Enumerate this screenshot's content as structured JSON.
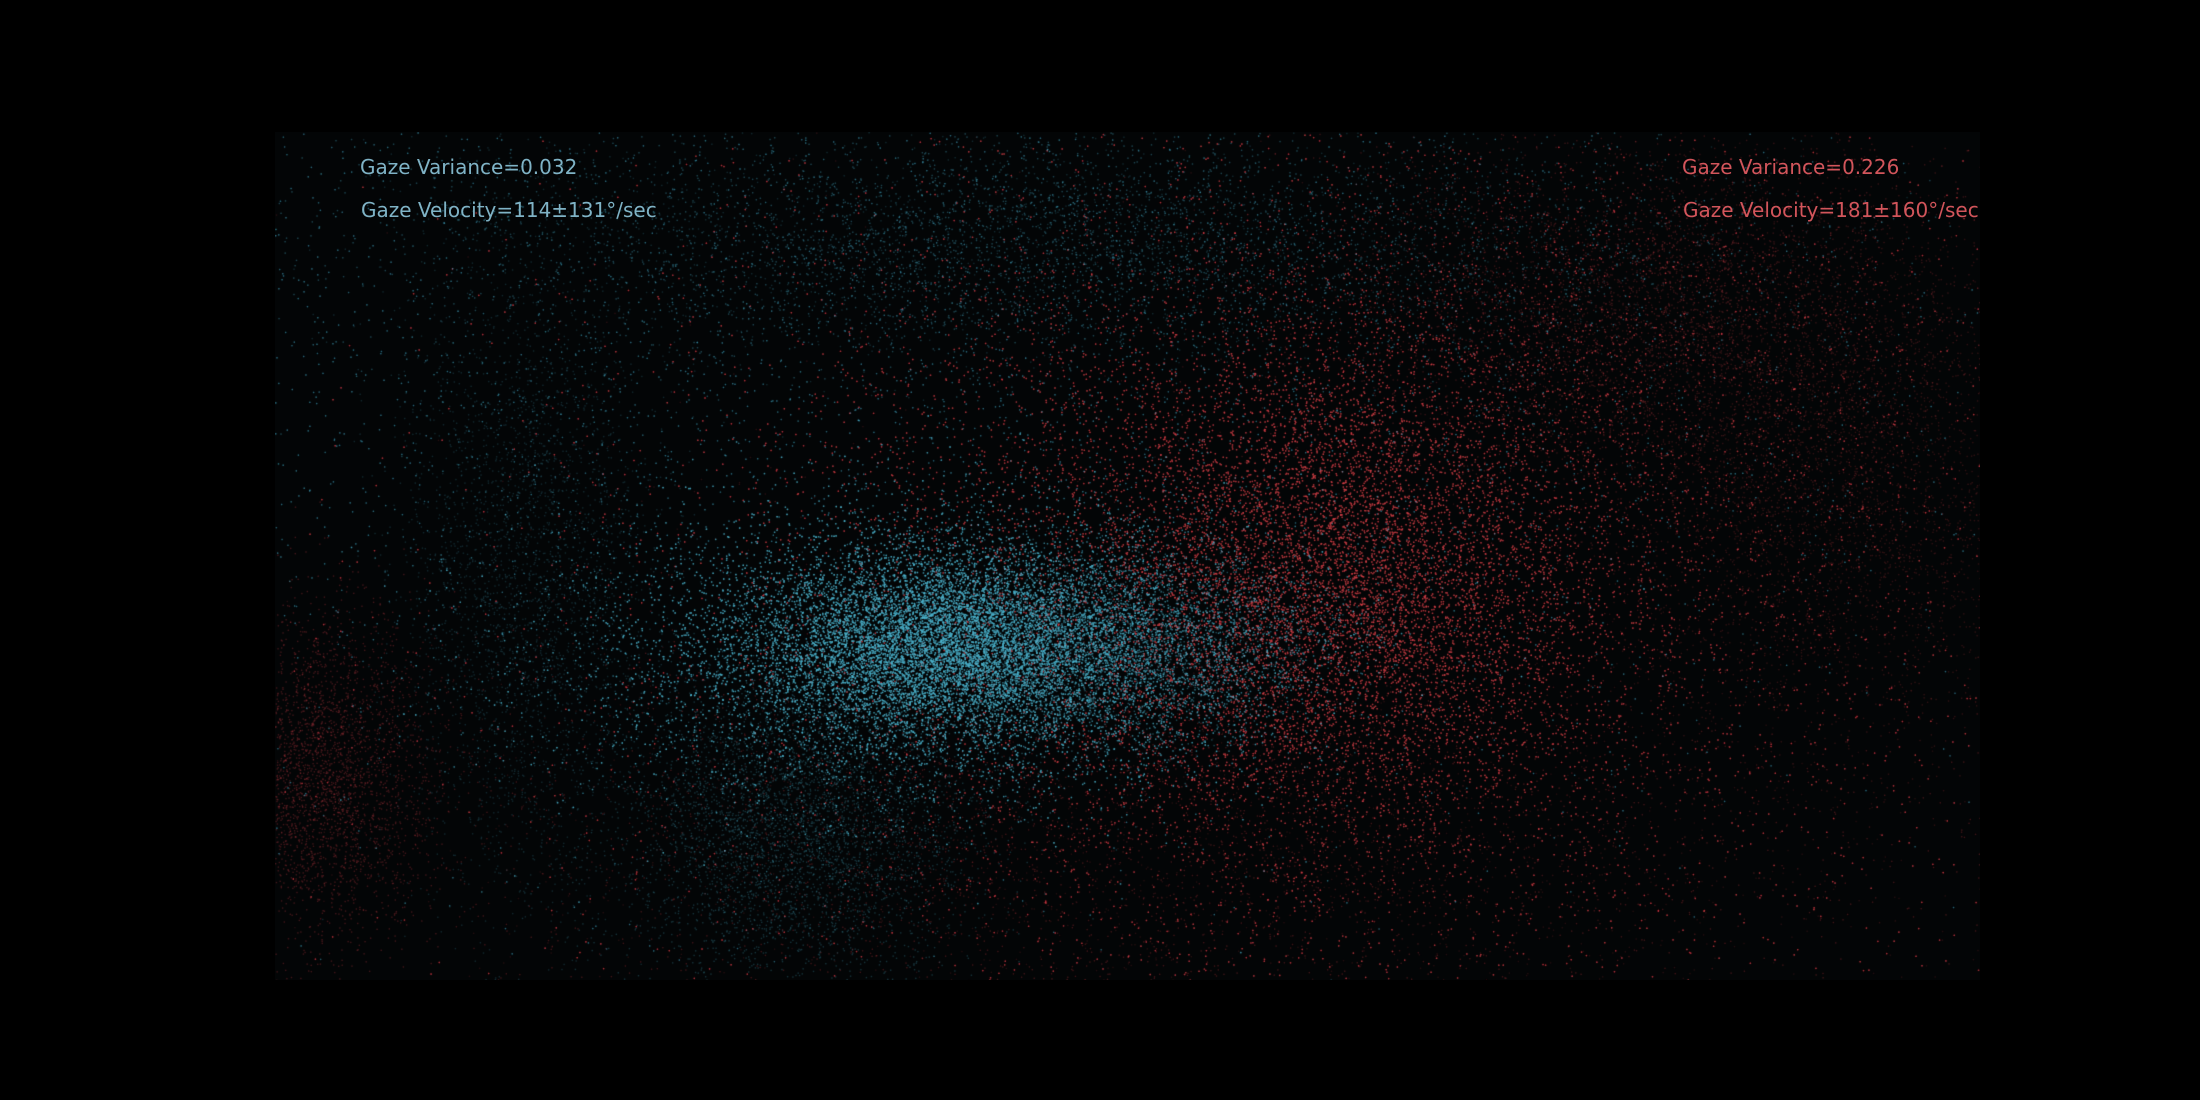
{
  "chart_data": {
    "type": "heatmap",
    "title": "",
    "xlabel": "",
    "ylabel": "",
    "grid": false,
    "legend": "none",
    "series": [
      {
        "color": "#4db3cc",
        "annotations": [
          "Gaze Variance=0.032",
          "Gaze Velocity=114±131$^\\circ$/sec"
        ],
        "gaze_variance": 0.032,
        "gaze_velocity_mean": 114,
        "gaze_velocity_std": 131
      },
      {
        "color": "#d9434b",
        "annotations": [
          "Gaze Variance=0.226",
          "Gaze Velocity=181±160$^\\circ$/sec"
        ],
        "gaze_variance": 0.226,
        "gaze_velocity_mean": 181,
        "gaze_velocity_std": 160
      }
    ]
  }
}
